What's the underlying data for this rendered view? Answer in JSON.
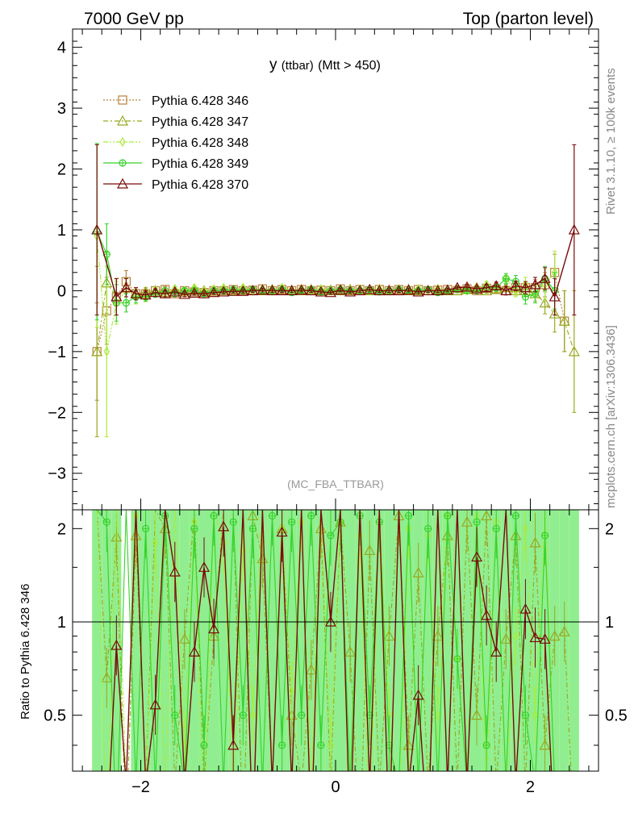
{
  "header": {
    "left_title": "7000 GeV pp",
    "right_title": "Top (parton level)"
  },
  "side_labels": {
    "rivet": "Rivet 3.1.10, ≥ 100k events",
    "mcplots": "mcplots.cern.ch [arXiv:1306.3436]"
  },
  "colors": {
    "s346": "#b8803a",
    "s347": "#9aa81e",
    "s348": "#a8ec3a",
    "s349": "#35d22a",
    "s370": "#7a0a0a",
    "band_yellow": "#ffff99",
    "band_green": "#90ee90"
  },
  "chart_data": [
    {
      "type": "line",
      "panel": "main",
      "title": "y (ttbar) (Mtt > 450)",
      "title_main": "y",
      "title_sub": "(ttbar)",
      "title_rest": "(Mtt > 450)",
      "watermark": "(MC_FBA_TTBAR)",
      "xlim": [
        -2.7,
        2.7
      ],
      "ylim": [
        -3.6,
        4.3
      ],
      "xticks": [
        -2,
        0,
        2
      ],
      "xtick_labels": [
        "−2",
        "0",
        "2"
      ],
      "yticks": [
        -3,
        -2,
        -1,
        0,
        1,
        2,
        3,
        4
      ],
      "ytick_labels": [
        "−3",
        "−2",
        "−1",
        "0",
        "1",
        "2",
        "3",
        "4"
      ],
      "legend_position": "top-left",
      "legend": [
        "Pythia 6.428 346",
        "Pythia 6.428 347",
        "Pythia 6.428 348",
        "Pythia 6.428 349",
        "Pythia 6.428 370"
      ],
      "x": [
        -2.45,
        -2.35,
        -2.25,
        -2.15,
        -2.05,
        -1.95,
        -1.85,
        -1.75,
        -1.65,
        -1.55,
        -1.45,
        -1.35,
        -1.25,
        -1.15,
        -1.05,
        -0.95,
        -0.85,
        -0.75,
        -0.65,
        -0.55,
        -0.45,
        -0.35,
        -0.25,
        -0.15,
        -0.05,
        0.05,
        0.15,
        0.25,
        0.35,
        0.45,
        0.55,
        0.65,
        0.75,
        0.85,
        0.95,
        1.05,
        1.15,
        1.25,
        1.35,
        1.45,
        1.55,
        1.65,
        1.75,
        1.85,
        1.95,
        2.05,
        2.15,
        2.25,
        2.35,
        2.45
      ],
      "series": [
        {
          "name": "Pythia 6.428 346",
          "marker": "square",
          "dash": "dotted",
          "values": [
            -1.0,
            -0.33,
            -0.1,
            0.15,
            -0.05,
            -0.05,
            0.0,
            0.02,
            -0.05,
            0.0,
            -0.02,
            -0.03,
            0.0,
            0.0,
            0.02,
            0.0,
            0.01,
            0.03,
            0.0,
            0.02,
            0.0,
            0.02,
            0.0,
            0.01,
            0.0,
            0.03,
            0.0,
            0.02,
            0.0,
            0.02,
            0.0,
            0.02,
            0.0,
            0.02,
            0.0,
            0.01,
            0.02,
            0.0,
            0.03,
            0.0,
            0.04,
            0.02,
            0.0,
            0.05,
            0.05,
            0.05,
            0.1,
            0.3,
            -0.5,
            null
          ],
          "errors": [
            0.8,
            0.55,
            0.3,
            0.18,
            0.1,
            0.07,
            0.06,
            0.05,
            0.04,
            0.04,
            0.03,
            0.03,
            0.03,
            0.03,
            0.03,
            0.03,
            0.03,
            0.03,
            0.03,
            0.03,
            0.03,
            0.03,
            0.03,
            0.03,
            0.03,
            0.03,
            0.03,
            0.03,
            0.03,
            0.03,
            0.03,
            0.03,
            0.03,
            0.03,
            0.03,
            0.03,
            0.03,
            0.03,
            0.04,
            0.04,
            0.05,
            0.06,
            0.07,
            0.08,
            0.1,
            0.13,
            0.2,
            0.3,
            0.5,
            0
          ]
        },
        {
          "name": "Pythia 6.428 347",
          "marker": "triangle",
          "dash": "dashdot",
          "values": [
            -1.0,
            0.13,
            -0.1,
            0.05,
            -0.05,
            -0.02,
            0.0,
            -0.03,
            0.02,
            -0.02,
            0.01,
            0.0,
            -0.02,
            0.0,
            0.0,
            0.02,
            0.0,
            0.0,
            0.02,
            0.0,
            0.01,
            0.0,
            0.02,
            0.0,
            0.01,
            0.0,
            0.02,
            0.0,
            0.0,
            0.02,
            0.01,
            0.0,
            0.02,
            0.0,
            0.0,
            0.02,
            0.0,
            0.0,
            0.02,
            0.05,
            0.0,
            0.03,
            0.05,
            0.0,
            0.0,
            -0.05,
            -0.2,
            -0.38,
            -0.5,
            -1.0
          ],
          "errors": [
            1.4,
            0.5,
            0.3,
            0.15,
            0.1,
            0.07,
            0.06,
            0.05,
            0.04,
            0.04,
            0.03,
            0.03,
            0.03,
            0.03,
            0.03,
            0.03,
            0.03,
            0.03,
            0.03,
            0.03,
            0.03,
            0.03,
            0.03,
            0.03,
            0.03,
            0.03,
            0.03,
            0.03,
            0.03,
            0.03,
            0.03,
            0.03,
            0.03,
            0.03,
            0.03,
            0.03,
            0.03,
            0.03,
            0.03,
            0.04,
            0.04,
            0.05,
            0.06,
            0.07,
            0.09,
            0.12,
            0.18,
            0.3,
            0.5,
            1.0
          ]
        },
        {
          "name": "Pythia 6.428 348",
          "marker": "diamond",
          "dash": "dashdotdot",
          "values": [
            0.9,
            -1.0,
            -0.2,
            0.0,
            -0.1,
            -0.1,
            0.0,
            -0.05,
            0.03,
            0.0,
            0.05,
            0.0,
            0.03,
            0.05,
            0.0,
            0.05,
            0.0,
            0.03,
            0.0,
            0.05,
            0.0,
            0.03,
            0.0,
            0.03,
            0.0,
            0.03,
            0.0,
            0.03,
            0.0,
            0.03,
            0.0,
            0.03,
            0.0,
            0.03,
            0.0,
            0.03,
            0.0,
            0.05,
            0.0,
            0.03,
            0.1,
            0.05,
            0.2,
            0.0,
            0.1,
            -0.05,
            0.1,
            0.3,
            null,
            null
          ],
          "errors": [
            1.5,
            1.4,
            0.35,
            0.2,
            0.12,
            0.08,
            0.06,
            0.05,
            0.04,
            0.04,
            0.03,
            0.03,
            0.03,
            0.03,
            0.03,
            0.03,
            0.03,
            0.03,
            0.03,
            0.03,
            0.03,
            0.03,
            0.03,
            0.03,
            0.03,
            0.03,
            0.03,
            0.03,
            0.03,
            0.03,
            0.03,
            0.03,
            0.03,
            0.03,
            0.03,
            0.03,
            0.03,
            0.03,
            0.03,
            0.04,
            0.05,
            0.06,
            0.08,
            0.1,
            0.12,
            0.15,
            0.25,
            0.35,
            0,
            0
          ]
        },
        {
          "name": "Pythia 6.428 349",
          "marker": "circleplus",
          "dash": "solid",
          "values": [
            0.97,
            0.6,
            -0.2,
            -0.2,
            -0.1,
            -0.1,
            -0.05,
            0.0,
            -0.05,
            0.0,
            0.0,
            -0.05,
            0.0,
            0.0,
            0.02,
            0.0,
            0.02,
            0.0,
            0.0,
            0.02,
            -0.03,
            0.0,
            0.02,
            -0.02,
            0.0,
            0.02,
            0.0,
            0.0,
            0.02,
            -0.02,
            0.0,
            0.02,
            0.0,
            0.0,
            0.02,
            -0.03,
            0.0,
            0.02,
            0.0,
            0.0,
            0.05,
            0.05,
            0.2,
            0.15,
            -0.1,
            -0.05,
            0.2,
            0.0,
            null,
            null
          ],
          "errors": [
            1.45,
            0.5,
            0.3,
            0.15,
            0.1,
            0.07,
            0.06,
            0.05,
            0.04,
            0.04,
            0.03,
            0.03,
            0.03,
            0.03,
            0.03,
            0.03,
            0.03,
            0.03,
            0.03,
            0.03,
            0.03,
            0.03,
            0.03,
            0.03,
            0.03,
            0.03,
            0.03,
            0.03,
            0.03,
            0.03,
            0.03,
            0.03,
            0.03,
            0.03,
            0.03,
            0.03,
            0.03,
            0.03,
            0.04,
            0.04,
            0.05,
            0.06,
            0.08,
            0.1,
            0.12,
            0.15,
            0.2,
            0.3,
            0,
            0
          ]
        },
        {
          "name": "Pythia 6.428 370",
          "marker": "triangle",
          "dash": "solid",
          "values": [
            1.0,
            null,
            -0.1,
            0.05,
            -0.05,
            -0.07,
            -0.03,
            -0.05,
            -0.02,
            -0.06,
            -0.04,
            -0.05,
            -0.03,
            -0.02,
            -0.01,
            -0.01,
            0.0,
            0.01,
            0.0,
            0.0,
            0.0,
            0.01,
            0.0,
            -0.02,
            -0.03,
            0.01,
            -0.02,
            0.0,
            0.02,
            0.0,
            0.0,
            0.0,
            0.01,
            -0.02,
            0.0,
            0.0,
            0.01,
            0.05,
            0.06,
            0.03,
            0.05,
            0.08,
            0.0,
            0.08,
            0.05,
            0.1,
            0.2,
            -0.1,
            null,
            1.0
          ],
          "errors": [
            1.4,
            0,
            0.3,
            0.15,
            0.1,
            0.07,
            0.06,
            0.05,
            0.04,
            0.04,
            0.03,
            0.03,
            0.03,
            0.03,
            0.03,
            0.03,
            0.03,
            0.03,
            0.03,
            0.03,
            0.03,
            0.03,
            0.03,
            0.03,
            0.03,
            0.03,
            0.03,
            0.03,
            0.03,
            0.03,
            0.03,
            0.03,
            0.03,
            0.03,
            0.03,
            0.03,
            0.03,
            0.03,
            0.04,
            0.04,
            0.05,
            0.06,
            0.07,
            0.08,
            0.1,
            0.12,
            0.18,
            0.3,
            0,
            1.4
          ]
        }
      ]
    },
    {
      "type": "line",
      "panel": "ratio",
      "ylabel": "Ratio to Pythia 6.428 346",
      "reference": "Pythia 6.428 346",
      "xlim": [
        -2.7,
        2.7
      ],
      "ylim": [
        0.33,
        2.3
      ],
      "ytick_labels": [
        "0.5",
        "1",
        "2"
      ],
      "ytick_values": [
        0.5,
        1,
        2
      ],
      "xtick_labels": [
        "−2",
        "0",
        "2"
      ],
      "xticks": [
        -2,
        0,
        2
      ],
      "band_half_width_yellow": [
        2.0,
        2.0,
        2.0,
        0.0,
        2.0,
        2.0,
        1.9,
        1.95,
        1.8,
        2.0,
        1.9,
        2.0,
        1.8,
        2.0,
        1.9,
        1.8,
        1.9,
        2.0,
        1.8,
        1.9,
        2.0,
        1.7,
        1.8,
        1.9,
        2.0,
        1.8,
        1.9,
        2.0,
        1.6,
        1.8,
        1.9,
        2.0,
        1.8,
        1.9,
        2.0,
        1.8,
        1.9,
        2.0,
        1.8,
        1.9,
        2.0,
        1.8,
        1.9,
        1.9,
        2.0,
        1.8,
        1.9,
        2.0,
        2.0,
        2.0
      ],
      "band_half_width_green": [
        1.7,
        1.9,
        1.8,
        0.0,
        1.6,
        1.7,
        1.5,
        1.6,
        1.4,
        1.7,
        1.6,
        1.5,
        1.6,
        1.4,
        1.5,
        1.6,
        1.4,
        1.5,
        1.7,
        1.3,
        1.6,
        1.4,
        1.5,
        1.6,
        1.4,
        1.5,
        1.6,
        1.4,
        1.3,
        1.5,
        1.6,
        1.4,
        1.5,
        1.6,
        1.4,
        1.5,
        1.6,
        1.4,
        1.5,
        1.6,
        1.4,
        1.5,
        1.6,
        1.4,
        1.5,
        1.6,
        1.4,
        1.5,
        1.6,
        1.4
      ],
      "ratio_series": [
        {
          "name": "Pythia 6.428 347",
          "values": [
            2.3,
            0.66,
            1.88,
            0.2,
            1.9,
            0.3,
            2.3,
            2.0,
            0.3,
            0.88,
            2.3,
            0.3,
            0.9,
            2.3,
            2.3,
            0.2,
            2.2,
            1.6,
            0.3,
            2.0,
            0.5,
            0.3,
            0.7,
            2.0,
            0.3,
            2.1,
            0.8,
            0.2,
            1.7,
            0.3,
            0.9,
            2.2,
            0.4,
            1.44,
            0.3,
            0.9,
            1.9,
            0.3,
            2.1,
            0.5,
            2.2,
            0.3,
            0.88,
            1.9,
            0.3,
            1.8,
            0.4,
            0.9,
            0.93,
            0.2
          ]
        },
        {
          "name": "Pythia 6.428 348",
          "values": [
            2.3,
            0.2,
            2.3,
            0.3,
            2.2,
            0.3,
            1.8,
            0.3,
            2.3,
            0.4,
            2.1,
            0.2,
            2.3,
            1.8,
            0.3,
            1.7,
            0.5,
            2.3,
            0.3,
            2.0,
            0.6,
            2.1,
            0.3,
            2.3,
            0.4,
            2.1,
            0.3,
            1.9,
            0.2,
            2.3,
            0.5,
            0.2,
            2.0,
            0.3,
            1.9,
            0.5,
            2.2,
            0.76,
            0.3,
            2.2,
            0.3,
            2.1,
            0.3,
            0.9,
            2.0,
            0.5,
            2.3,
            0.3,
            0.2,
            0.2
          ]
        },
        {
          "name": "Pythia 6.428 349",
          "values": [
            2.3,
            2.1,
            0.2,
            2.3,
            0.3,
            2.0,
            0.3,
            2.2,
            0.5,
            0.3,
            2.0,
            0.4,
            2.2,
            0.3,
            2.1,
            0.5,
            2.0,
            0.3,
            2.2,
            0.4,
            2.1,
            0.5,
            2.2,
            0.4,
            1.9,
            2.1,
            0.3,
            2.2,
            0.5,
            2.1,
            0.4,
            0.3,
            2.2,
            0.3,
            2.0,
            0.3,
            2.2,
            0.76,
            0.3,
            2.1,
            0.4,
            2.0,
            0.3,
            2.2,
            0.5,
            0.3,
            1.9,
            0.3,
            0.2,
            0.2
          ]
        },
        {
          "name": "Pythia 6.428 370",
          "values": [
            0.0,
            0.2,
            0.84,
            0.3,
            2.3,
            0.3,
            0.54,
            2.3,
            1.45,
            0.3,
            0.8,
            1.5,
            0.95,
            2.03,
            0.4,
            2.3,
            0.2,
            2.3,
            0.3,
            1.95,
            0.3,
            2.3,
            0.2,
            2.3,
            1.0,
            2.3,
            0.2,
            2.3,
            0.3,
            2.3,
            0.2,
            2.3,
            0.3,
            0.58,
            0.2,
            2.3,
            0.3,
            2.3,
            0.3,
            1.62,
            1.05,
            0.8,
            2.3,
            0.3,
            1.1,
            0.89,
            0.88,
            0.2,
            0.2,
            0.0
          ]
        }
      ]
    }
  ]
}
